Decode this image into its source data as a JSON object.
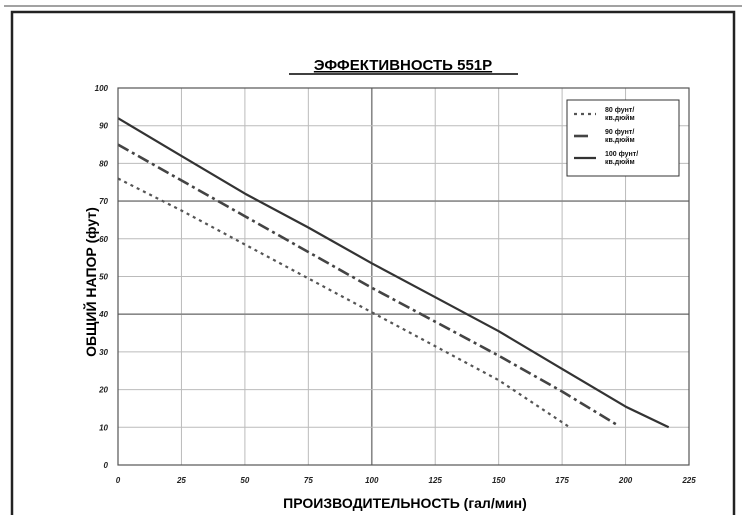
{
  "chart_data": {
    "type": "line",
    "title": "ЭФФЕКТИВНОСТЬ 551P",
    "xlabel": "ПРОИЗВОДИТЕЛЬНОСТЬ (гал/мин)",
    "ylabel": "ОБЩИЙ НАПОР (фут)",
    "xlim": [
      0,
      225
    ],
    "ylim": [
      0,
      100
    ],
    "xticks": [
      "0",
      "25",
      "50",
      "75",
      "100",
      "125",
      "150",
      "175",
      "200",
      "225"
    ],
    "yticks": [
      "0",
      "10",
      "20",
      "30",
      "40",
      "50",
      "60",
      "70",
      "80",
      "90",
      "100"
    ],
    "grid": true,
    "legend_position": "top-right",
    "series": [
      {
        "name": "80 фунт/ кв.дюйм",
        "legend_lines": [
          "80 фунт/",
          "кв.дюйм"
        ],
        "style": "dotted",
        "x": [
          0,
          25,
          50,
          75,
          100,
          125,
          150,
          178
        ],
        "y": [
          76,
          67.5,
          58.5,
          49.5,
          40.5,
          31.5,
          22.5,
          10
        ]
      },
      {
        "name": "90 фунт/ кв.дюйм",
        "legend_lines": [
          "90 фунт/",
          "кв.дюйм"
        ],
        "style": "dashdot",
        "x": [
          0,
          25,
          50,
          75,
          100,
          125,
          150,
          175,
          197
        ],
        "y": [
          85,
          75.5,
          66,
          56.5,
          47,
          38,
          29,
          19.5,
          10.5
        ]
      },
      {
        "name": "100 фунт/ кв.дюйм",
        "legend_lines": [
          "100 фунт/",
          "кв.дюйм"
        ],
        "style": "solid",
        "x": [
          0,
          25,
          50,
          75,
          100,
          125,
          150,
          175,
          200,
          217
        ],
        "y": [
          92,
          82,
          72,
          63,
          53.5,
          44.5,
          35.5,
          25.5,
          15.5,
          10
        ]
      }
    ]
  }
}
